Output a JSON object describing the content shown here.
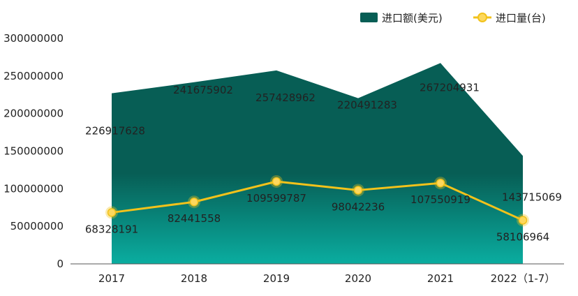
{
  "legend": {
    "area_label": "进口额(美元)",
    "line_label": "进口量(台)"
  },
  "colors": {
    "area_top": "#075e55",
    "area_bottom": "#0aada0",
    "line": "#f2c21b",
    "marker_fill": "#fdd85d",
    "axis": "#555555"
  },
  "chart_data": {
    "type": "area",
    "categories": [
      "2017",
      "2018",
      "2019",
      "2020",
      "2021",
      "2022（1-7）"
    ],
    "ylim": [
      0,
      300000000
    ],
    "yticks": [
      0,
      50000000,
      100000000,
      150000000,
      200000000,
      250000000,
      300000000
    ],
    "ytick_labels": [
      "0",
      "50000000",
      "100000000",
      "150000000",
      "200000000",
      "250000000",
      "300000000"
    ],
    "series": [
      {
        "name": "进口额(美元)",
        "type": "area",
        "values": [
          226917628,
          241675902,
          257428962,
          220491283,
          267204931,
          143715069
        ],
        "labels": [
          "226917628",
          "241675902",
          "257428962",
          "220491283",
          "267204931",
          "143715069"
        ]
      },
      {
        "name": "进口量(台)",
        "type": "line",
        "values": [
          68328191,
          82441558,
          109599787,
          98042236,
          107550919,
          58106964
        ],
        "labels": [
          "68328191",
          "82441558",
          "109599787",
          "98042236",
          "107550919",
          "58106964"
        ]
      }
    ],
    "grid": false,
    "legend_position": "top-right"
  }
}
